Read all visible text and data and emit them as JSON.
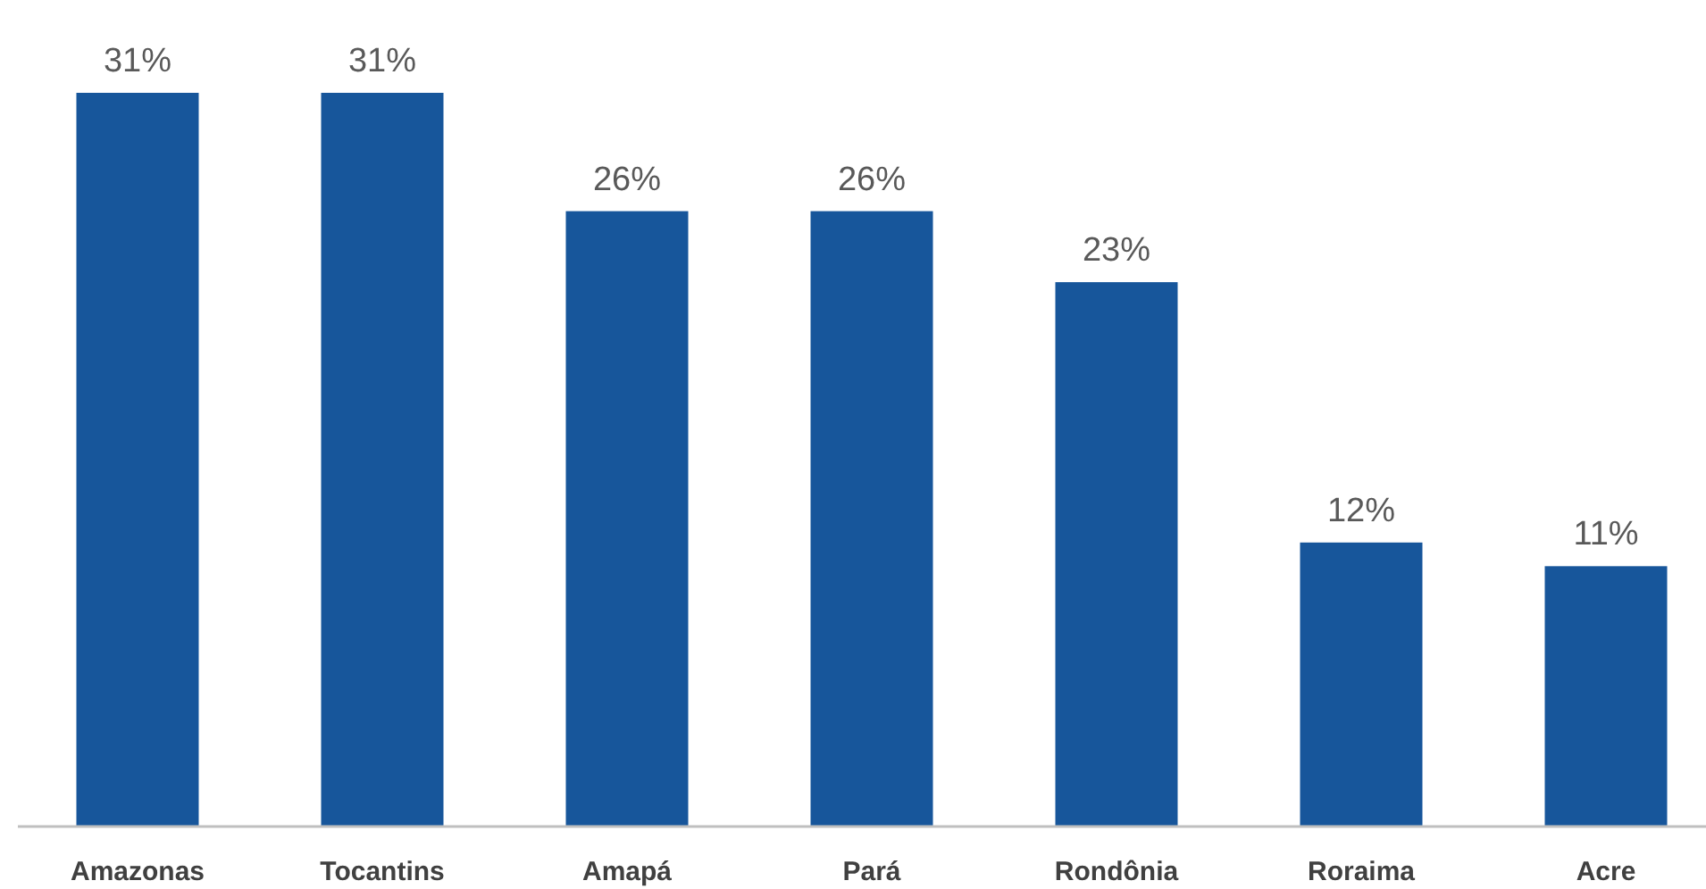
{
  "chart_data": {
    "type": "bar",
    "categories": [
      "Amazonas",
      "Tocantins",
      "Amapá",
      "Pará",
      "Rondônia",
      "Roraima",
      "Acre"
    ],
    "values": [
      31,
      31,
      26,
      26,
      23,
      12,
      11
    ],
    "value_labels": [
      "31%",
      "31%",
      "26%",
      "26%",
      "23%",
      "12%",
      "11%"
    ],
    "color": "#17569b"
  }
}
